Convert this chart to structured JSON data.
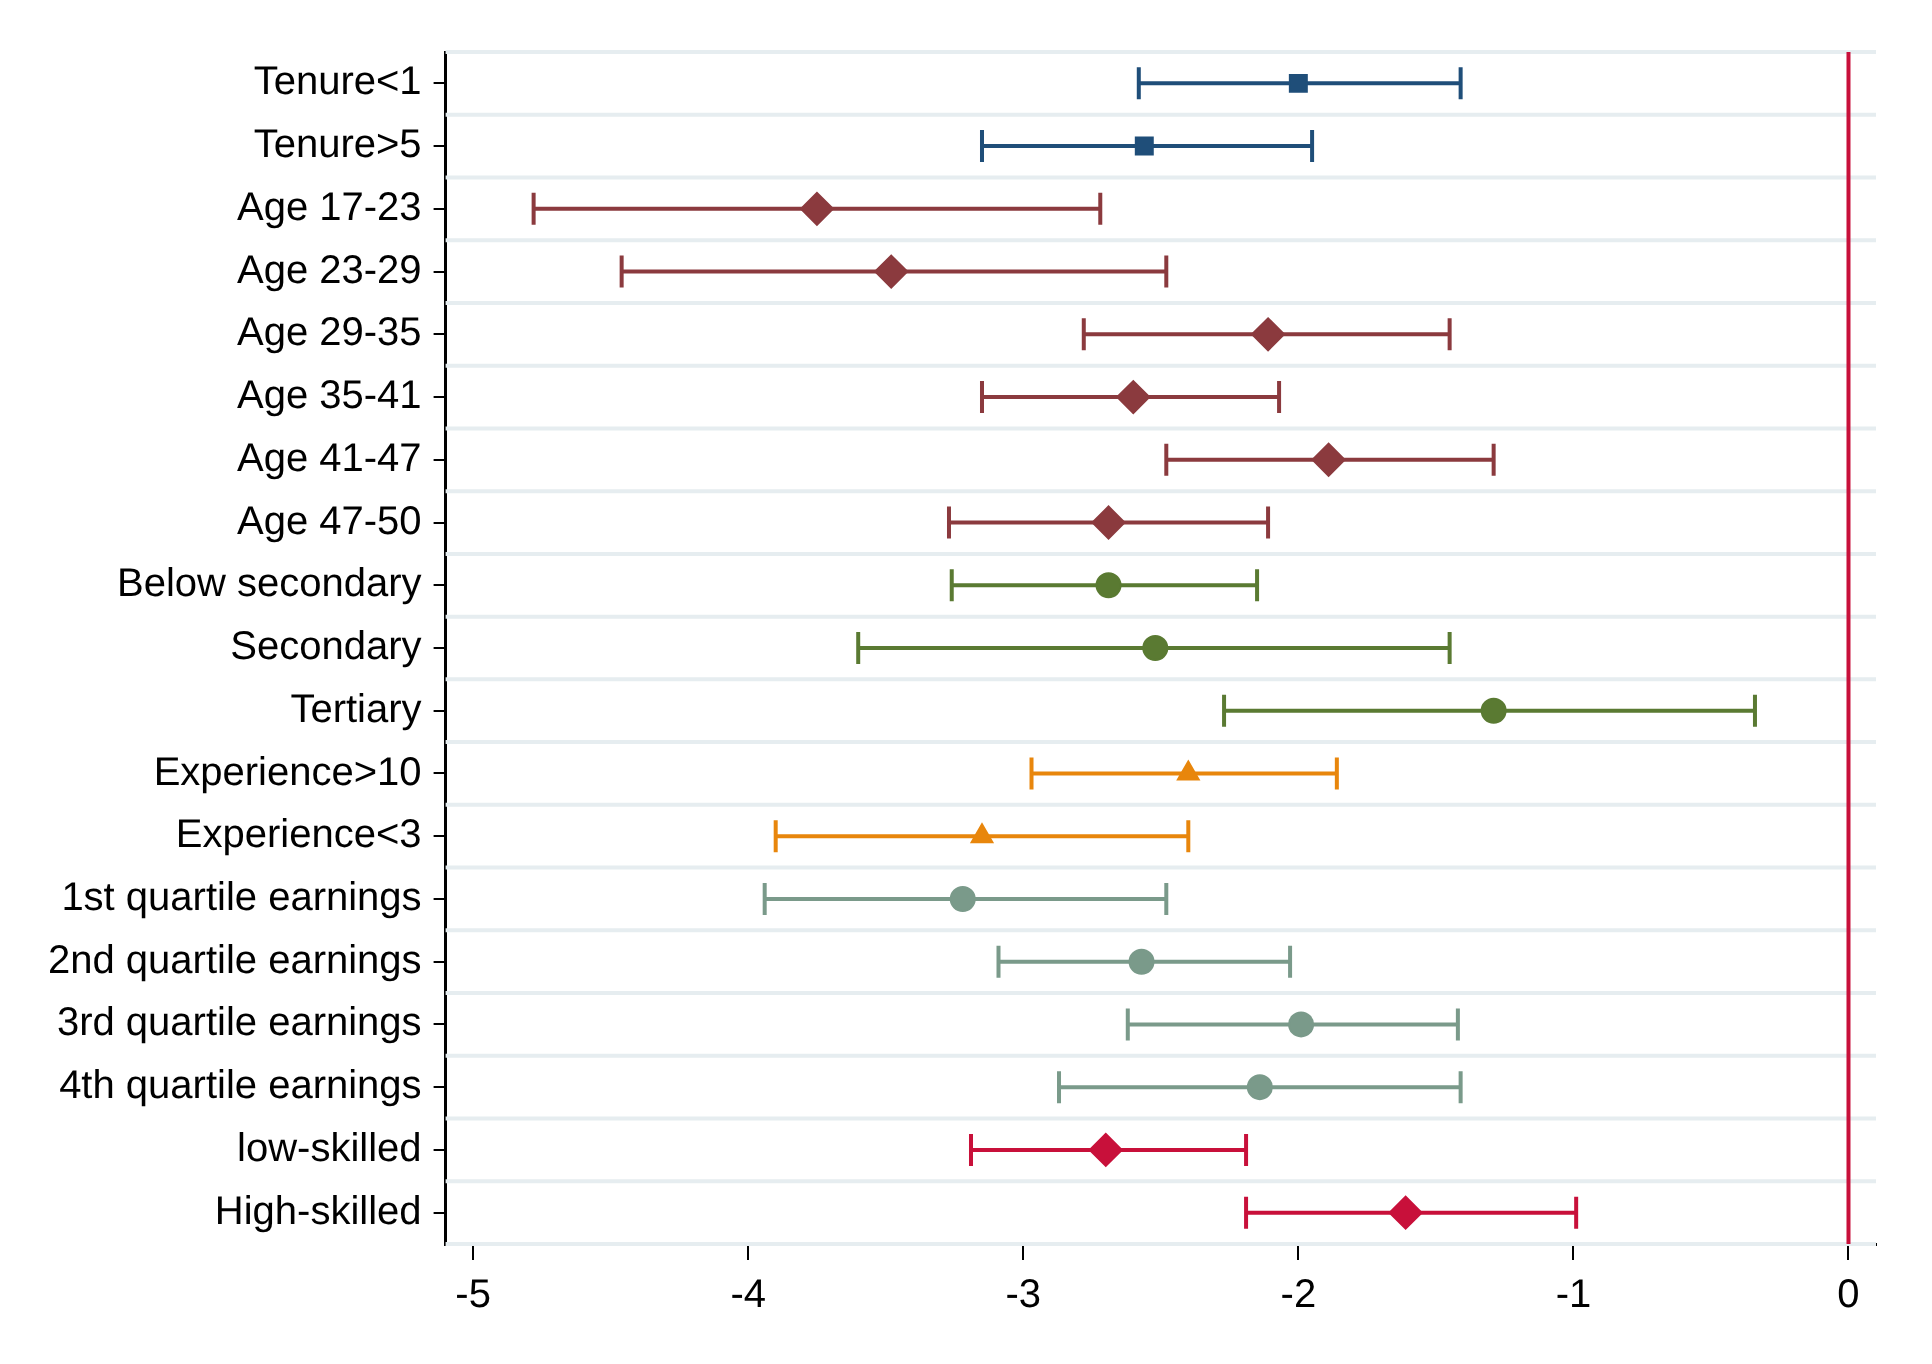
{
  "chart_data": {
    "type": "scatter",
    "orientation": "horizontal",
    "categories": [
      "Tenure<1",
      "Tenure>5",
      "Age 17-23",
      "Age 23-29",
      "Age 29-35",
      "Age 35-41",
      "Age 41-47",
      "Age 47-50",
      "Below secondary",
      "Secondary",
      "Tertiary",
      "Experience>10",
      "Experience<3",
      "1st quartile earnings",
      "2nd quartile earnings",
      "3rd quartile earnings",
      "4th quartile earnings",
      "low-skilled",
      "High-skilled"
    ],
    "series": [
      {
        "color": "#1f4e79",
        "marker": "square",
        "values": [
          -2.0,
          -2.56,
          null,
          null,
          null,
          null,
          null,
          null,
          null,
          null,
          null,
          null,
          null,
          null,
          null,
          null,
          null,
          null,
          null
        ],
        "errors": [
          [
            -2.58,
            -1.41
          ],
          [
            -3.15,
            -1.95
          ],
          null,
          null,
          null,
          null,
          null,
          null,
          null,
          null,
          null,
          null,
          null,
          null,
          null,
          null,
          null,
          null,
          null
        ]
      },
      {
        "color": "#8b3a3e",
        "marker": "diamond",
        "values": [
          null,
          null,
          -3.75,
          -3.48,
          -2.11,
          -2.6,
          -1.89,
          -2.69,
          null,
          null,
          null,
          null,
          null,
          null,
          null,
          null,
          null,
          null,
          null
        ],
        "errors": [
          null,
          null,
          [
            -4.78,
            -2.72
          ],
          [
            -4.46,
            -2.48
          ],
          [
            -2.78,
            -1.45
          ],
          [
            -3.15,
            -2.07
          ],
          [
            -2.48,
            -1.29
          ],
          [
            -3.27,
            -2.11
          ],
          null,
          null,
          null,
          null,
          null,
          null,
          null,
          null,
          null,
          null,
          null
        ]
      },
      {
        "color": "#5a7a32",
        "marker": "circle",
        "values": [
          null,
          null,
          null,
          null,
          null,
          null,
          null,
          null,
          -2.69,
          -2.52,
          -1.29,
          null,
          null,
          null,
          null,
          null,
          null,
          null,
          null
        ],
        "errors": [
          null,
          null,
          null,
          null,
          null,
          null,
          null,
          null,
          [
            -3.26,
            -2.15
          ],
          [
            -3.6,
            -1.45
          ],
          [
            -2.27,
            -0.34
          ],
          null,
          null,
          null,
          null,
          null,
          null,
          null,
          null
        ]
      },
      {
        "color": "#e8860c",
        "marker": "triangle",
        "values": [
          null,
          null,
          null,
          null,
          null,
          null,
          null,
          null,
          null,
          null,
          null,
          -2.4,
          -3.15,
          null,
          null,
          null,
          null,
          null,
          null
        ],
        "errors": [
          null,
          null,
          null,
          null,
          null,
          null,
          null,
          null,
          null,
          null,
          null,
          [
            -2.97,
            -1.86
          ],
          [
            -3.9,
            -2.4
          ],
          null,
          null,
          null,
          null,
          null,
          null
        ]
      },
      {
        "color": "#7a9a8a",
        "marker": "circle",
        "values": [
          null,
          null,
          null,
          null,
          null,
          null,
          null,
          null,
          null,
          null,
          null,
          null,
          null,
          -3.22,
          -2.57,
          -1.99,
          -2.14,
          null,
          null
        ],
        "errors": [
          null,
          null,
          null,
          null,
          null,
          null,
          null,
          null,
          null,
          null,
          null,
          null,
          null,
          [
            -3.94,
            -2.48
          ],
          [
            -3.09,
            -2.03
          ],
          [
            -2.62,
            -1.42
          ],
          [
            -2.87,
            -1.41
          ],
          null,
          null
        ]
      },
      {
        "color": "#c8103a",
        "marker": "diamond",
        "values": [
          null,
          null,
          null,
          null,
          null,
          null,
          null,
          null,
          null,
          null,
          null,
          null,
          null,
          null,
          null,
          null,
          null,
          -2.7,
          -1.61
        ],
        "errors": [
          null,
          null,
          null,
          null,
          null,
          null,
          null,
          null,
          null,
          null,
          null,
          null,
          null,
          null,
          null,
          null,
          null,
          [
            -3.19,
            -2.19
          ],
          [
            -2.19,
            -0.99
          ]
        ]
      }
    ],
    "xlim": [
      -5.1,
      0.1
    ],
    "xticks": [
      -5,
      -4,
      -3,
      -2,
      -1,
      0
    ],
    "ref_lines": [
      {
        "axis": "x",
        "value": 0,
        "color": "#c8103a"
      }
    ],
    "grid": "y",
    "legend": false
  }
}
